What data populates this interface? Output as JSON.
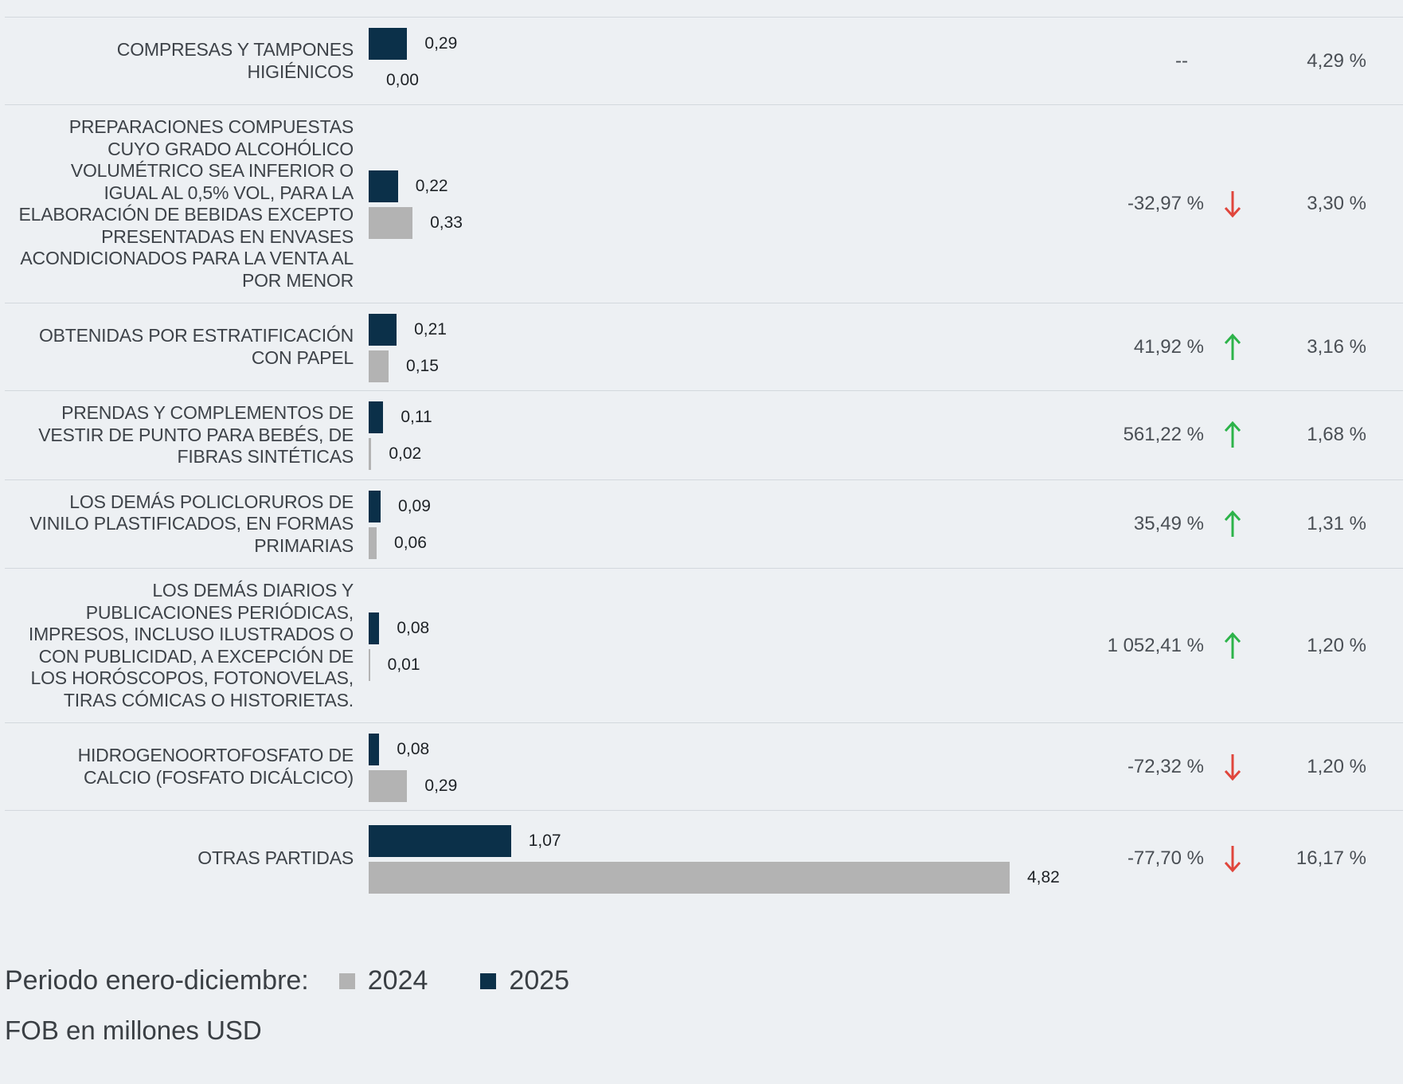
{
  "chart_data": {
    "type": "bar",
    "orientation": "horizontal",
    "categories": [
      "COMPRESAS Y TAMPONES HIGIÉNICOS",
      "PREPARACIONES COMPUESTAS CUYO GRADO ALCOHÓLICO VOLUMÉTRICO SEA INFERIOR O IGUAL AL 0,5% VOL, PARA LA ELABORACIÓN DE BEBIDAS EXCEPTO PRESENTADAS EN ENVASES ACONDICIONADOS PARA LA VENTA AL POR MENOR",
      "OBTENIDAS POR ESTRATIFICACIÓN CON PAPEL",
      "PRENDAS Y COMPLEMENTOS DE VESTIR DE PUNTO PARA BEBÉS, DE FIBRAS SINTÉTICAS",
      "LOS DEMÁS POLICLORUROS DE VINILO PLASTIFICADOS, EN FORMAS PRIMARIAS",
      "LOS DEMÁS DIARIOS Y PUBLICACIONES PERIÓDICAS, IMPRESOS, INCLUSO ILUSTRADOS O CON PUBLICIDAD, A EXCEPCIÓN DE LOS HORÓSCOPOS, FOTONOVELAS, TIRAS CÓMICAS O HISTORIETAS.",
      "HIDROGENOORTOFOSFATO DE CALCIO (FOSFATO DICÁLCICO)",
      "OTRAS PARTIDAS"
    ],
    "series": [
      {
        "name": "2025",
        "color": "#0b3049",
        "values": [
          0.29,
          0.22,
          0.21,
          0.11,
          0.09,
          0.08,
          0.08,
          1.07
        ],
        "value_labels": [
          "0,29",
          "0,22",
          "0,21",
          "0,11",
          "0,09",
          "0,08",
          "0,08",
          "1,07"
        ]
      },
      {
        "name": "2024",
        "color": "#b3b3b3",
        "values": [
          0.0,
          0.33,
          0.15,
          0.02,
          0.06,
          0.01,
          0.29,
          4.82
        ],
        "value_labels": [
          "0,00",
          "0,33",
          "0,15",
          "0,02",
          "0,06",
          "0,01",
          "0,29",
          "4,82"
        ]
      }
    ],
    "variation": {
      "values": [
        null,
        -32.97,
        41.92,
        561.22,
        35.49,
        1052.41,
        -72.32,
        -77.7
      ],
      "value_labels": [
        "--",
        "-32,97 %",
        "41,92 %",
        "561,22 %",
        "35,49 %",
        "1 052,41 %",
        "-72,32 %",
        "-77,70 %"
      ],
      "up_color": "#2db34a",
      "down_color": "#e0463c"
    },
    "share": {
      "values": [
        4.29,
        3.3,
        3.16,
        1.68,
        1.31,
        1.2,
        1.2,
        16.17
      ],
      "value_labels": [
        "4,29 %",
        "3,30 %",
        "3,16 %",
        "1,68 %",
        "1,31 %",
        "1,20 %",
        "1,20 %",
        "16,17 %"
      ]
    },
    "legend_title": "Periodo enero-diciembre:",
    "note": "FOB en millones USD"
  }
}
